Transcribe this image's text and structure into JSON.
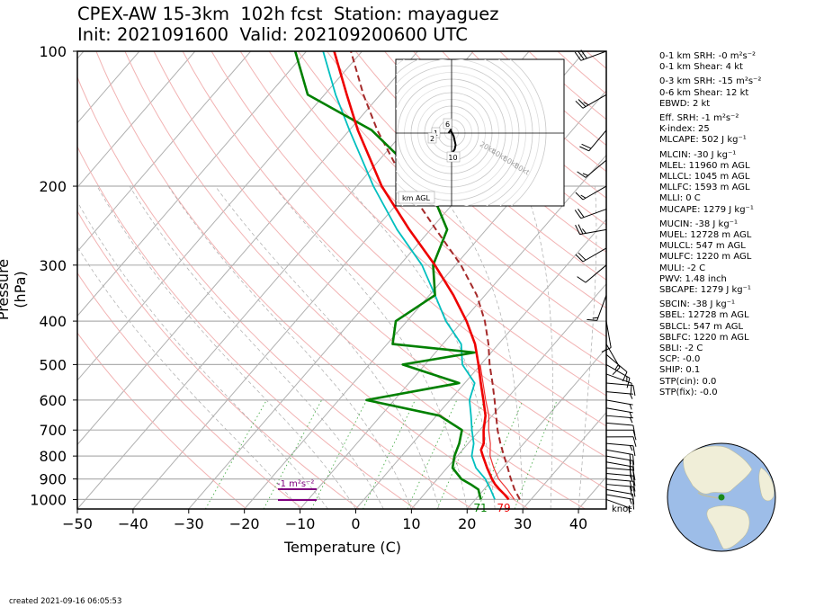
{
  "title": {
    "line1": "CPEX-AW 15-3km  102h fcst  Station: mayaguez",
    "line2": "Init: 2021091600  Valid: 202109200600 UTC"
  },
  "created": "created 2021-09-16 06:05:53",
  "chart_data": {
    "type": "line",
    "subtype": "skew-T log-P sounding",
    "xlabel": "Temperature (C)",
    "ylabel": "Pressure (hPa)",
    "xlim": [
      -50,
      45
    ],
    "ylim": [
      1050,
      100
    ],
    "yscale": "log",
    "x_ticks": [
      -50,
      -40,
      -30,
      -20,
      -10,
      0,
      10,
      20,
      30,
      40
    ],
    "y_ticks": [
      100,
      200,
      300,
      400,
      500,
      600,
      700,
      800,
      900,
      1000
    ],
    "series": [
      {
        "role": "temperature",
        "color": "#ee0000",
        "pressure": [
          1000,
          975,
          950,
          925,
          900,
          850,
          800,
          775,
          750,
          700,
          650,
          600,
          550,
          500,
          450,
          400,
          350,
          300,
          250,
          200,
          150,
          125,
          100
        ],
        "temp": [
          26,
          24.5,
          22.8,
          21.2,
          19.8,
          17.2,
          14.6,
          13.3,
          12.8,
          10.7,
          8.8,
          6.0,
          2.9,
          -0.4,
          -4.2,
          -9.3,
          -15.7,
          -23.7,
          -33.8,
          -45.5,
          -58.5,
          -66.0,
          -75.0
        ]
      },
      {
        "role": "virtual temperature",
        "color": "#ee3333",
        "pressure": [
          1000,
          950,
          900,
          850,
          800,
          750,
          700,
          650,
          600,
          500
        ],
        "temp": [
          27,
          24.2,
          21.0,
          18.4,
          15.9,
          14.0,
          11.6,
          9.4,
          6.4,
          -0.1
        ]
      },
      {
        "role": "dewpoint",
        "color": "#008000",
        "pressure": [
          1000,
          975,
          950,
          925,
          900,
          850,
          800,
          750,
          700,
          650,
          600,
          550,
          500,
          470,
          450,
          400,
          350,
          300,
          250,
          200,
          150,
          125,
          100
        ],
        "temp": [
          21,
          20.0,
          19.0,
          16.8,
          14.3,
          11.0,
          9.5,
          8.4,
          6.8,
          0.5,
          -15.0,
          -1.0,
          -14.0,
          -3.0,
          -19.0,
          -22.0,
          -19.0,
          -24.0,
          -27.0,
          -37.0,
          -56.0,
          -73.0,
          -82.0
        ]
      },
      {
        "role": "wet-bulb temperature",
        "color": "#00bfbf",
        "pressure": [
          1000,
          950,
          900,
          850,
          800,
          750,
          700,
          650,
          600,
          550,
          500,
          450,
          400,
          350,
          300,
          250,
          200,
          150,
          125,
          100
        ],
        "temp": [
          23.5,
          21.2,
          18.6,
          15.2,
          12.6,
          11.0,
          8.6,
          6.2,
          3.5,
          1.8,
          -3.3,
          -6.7,
          -13.0,
          -19.0,
          -26.0,
          -36.0,
          -47.0,
          -60.0,
          -68.0,
          -77.0
        ]
      },
      {
        "role": "parcel path",
        "color": "#a52a2a",
        "style": "dashed",
        "pressure": [
          1000,
          950,
          900,
          850,
          800,
          750,
          700,
          650,
          600,
          550,
          500,
          450,
          400,
          350,
          300,
          250,
          200,
          150,
          125,
          100
        ],
        "temp": [
          28,
          25.5,
          23.2,
          20.9,
          18.4,
          15.8,
          13.2,
          10.7,
          8.0,
          5.0,
          1.6,
          -1.8,
          -6.0,
          -11.5,
          -19.0,
          -29.0,
          -41.0,
          -55.0,
          -63.0,
          -72.0
        ]
      }
    ],
    "annotations": {
      "surface_temp_f": "79",
      "surface_dewpoint_f": "71",
      "srh_bar_label": "-1 m²s⁻²",
      "wind_unit": "knot"
    },
    "hodograph": {
      "ring_labels": [
        "20kt",
        "40kt",
        "60kt",
        "80kt"
      ],
      "height_labels": [
        "1",
        "2",
        "6",
        "10"
      ],
      "legend": "km AGL",
      "u": [
        -3,
        -2,
        -1,
        0.5,
        2,
        3,
        4,
        3,
        1,
        -1
      ],
      "v": [
        0,
        1,
        2,
        0,
        -2,
        -5,
        -8,
        -11,
        -13,
        -14
      ]
    },
    "wind_barbs": {
      "pressure": [
        1000,
        975,
        950,
        925,
        900,
        875,
        850,
        825,
        800,
        775,
        750,
        725,
        700,
        675,
        650,
        625,
        600,
        575,
        550,
        525,
        500,
        475,
        450,
        400,
        350,
        300,
        275,
        250,
        225,
        200,
        175,
        150,
        125,
        100
      ],
      "speed_kt": [
        5,
        15,
        10,
        20,
        20,
        15,
        20,
        20,
        20,
        20,
        15,
        10,
        10,
        10,
        5,
        5,
        5,
        5,
        10,
        10,
        15,
        10,
        15,
        10,
        15,
        10,
        20,
        25,
        20,
        15,
        15,
        20,
        25,
        30
      ],
      "direction_deg": [
        110,
        100,
        100,
        95,
        95,
        95,
        95,
        100,
        100,
        100,
        95,
        90,
        90,
        95,
        95,
        100,
        100,
        95,
        95,
        110,
        120,
        130,
        150,
        170,
        200,
        230,
        240,
        260,
        250,
        240,
        230,
        220,
        240,
        250
      ]
    },
    "globe_marker": "station location (green dot) in the Caribbean"
  },
  "stats": [
    "0-1 km SRH: -0 m²s⁻²",
    "0-1 km Shear: 4 kt",
    "",
    "0-3 km SRH: -15 m²s⁻²",
    "0-6 km Shear: 12 kt",
    "EBWD: 2 kt",
    "",
    "Eff. SRH: -1 m²s⁻²",
    "K-index: 25",
    "MLCAPE: 502 J kg⁻¹",
    "",
    "MLCIN: -30 J kg⁻¹",
    "MLEL: 11960 m AGL",
    "MLLCL: 1045 m AGL",
    "MLLFC: 1593 m AGL",
    "MLLI: 0 C",
    "MUCAPE: 1279 J kg⁻¹",
    "",
    "MUCIN: -38 J kg⁻¹",
    "MUEL: 12728 m AGL",
    "MULCL: 547 m AGL",
    "MULFC: 1220 m AGL",
    "MULI: -2 C",
    "PWV: 1.48 inch",
    "SBCAPE: 1279 J kg⁻¹",
    "",
    "SBCIN: -38 J kg⁻¹",
    "SBEL: 12728 m AGL",
    "SBLCL: 547 m AGL",
    "SBLFC: 1220 m AGL",
    "SBLI: -2 C",
    "SCP: -0.0",
    "SHIP: 0.1",
    "STP(cin): 0.0",
    "STP(fix): -0.0"
  ]
}
